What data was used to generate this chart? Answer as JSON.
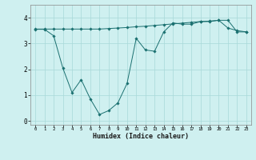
{
  "title": "",
  "xlabel": "Humidex (Indice chaleur)",
  "background_color": "#cff0f0",
  "grid_color": "#a8d8d8",
  "line_color": "#1a7070",
  "xlim": [
    -0.5,
    23.5
  ],
  "ylim": [
    -0.15,
    4.5
  ],
  "xticks": [
    0,
    1,
    2,
    3,
    4,
    5,
    6,
    7,
    8,
    9,
    10,
    11,
    12,
    13,
    14,
    15,
    16,
    17,
    18,
    19,
    20,
    21,
    22,
    23
  ],
  "yticks": [
    0,
    1,
    2,
    3,
    4
  ],
  "line1_x": [
    0,
    1,
    2,
    3,
    4,
    5,
    6,
    7,
    8,
    9,
    10,
    11,
    12,
    13,
    14,
    15,
    16,
    17,
    18,
    19,
    20,
    21,
    22,
    23
  ],
  "line1_y": [
    3.55,
    3.55,
    3.3,
    2.05,
    1.1,
    1.6,
    0.85,
    0.25,
    0.4,
    0.7,
    1.45,
    3.2,
    2.75,
    2.7,
    3.45,
    3.8,
    3.75,
    3.75,
    3.85,
    3.85,
    3.9,
    3.6,
    3.5,
    3.45
  ],
  "line2_x": [
    0,
    1,
    2,
    3,
    4,
    5,
    6,
    7,
    8,
    9,
    10,
    11,
    12,
    13,
    14,
    15,
    16,
    17,
    18,
    19,
    20,
    21,
    22,
    23
  ],
  "line2_y": [
    3.56,
    3.56,
    3.56,
    3.56,
    3.56,
    3.56,
    3.56,
    3.56,
    3.58,
    3.6,
    3.62,
    3.65,
    3.67,
    3.7,
    3.73,
    3.76,
    3.79,
    3.82,
    3.85,
    3.87,
    3.9,
    3.9,
    3.45,
    3.45
  ]
}
